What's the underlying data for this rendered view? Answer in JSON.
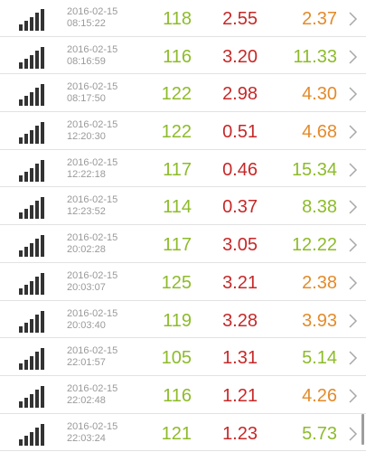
{
  "colors": {
    "green": "#8dbb2a",
    "red": "#c62828",
    "orange": "#e48a2a",
    "signal": "#333333",
    "timestamp": "#9a9a9a"
  },
  "icons": {
    "signal": "signal-strength-icon",
    "chevron": "chevron-right-icon"
  },
  "rows": [
    {
      "date": "2016-02-15",
      "time": "08:15:22",
      "v1": "118",
      "v2": "2.55",
      "v3": "2.37",
      "c1": "green",
      "c2": "red",
      "c3": "orange"
    },
    {
      "date": "2016-02-15",
      "time": "08:16:59",
      "v1": "116",
      "v2": "3.20",
      "v3": "11.33",
      "c1": "green",
      "c2": "red",
      "c3": "green"
    },
    {
      "date": "2016-02-15",
      "time": "08:17:50",
      "v1": "122",
      "v2": "2.98",
      "v3": "4.30",
      "c1": "green",
      "c2": "red",
      "c3": "orange"
    },
    {
      "date": "2016-02-15",
      "time": "12:20:30",
      "v1": "122",
      "v2": "0.51",
      "v3": "4.68",
      "c1": "green",
      "c2": "red",
      "c3": "orange"
    },
    {
      "date": "2016-02-15",
      "time": "12:22:18",
      "v1": "117",
      "v2": "0.46",
      "v3": "15.34",
      "c1": "green",
      "c2": "red",
      "c3": "green"
    },
    {
      "date": "2016-02-15",
      "time": "12:23:52",
      "v1": "114",
      "v2": "0.37",
      "v3": "8.38",
      "c1": "green",
      "c2": "red",
      "c3": "green"
    },
    {
      "date": "2016-02-15",
      "time": "20:02:28",
      "v1": "117",
      "v2": "3.05",
      "v3": "12.22",
      "c1": "green",
      "c2": "red",
      "c3": "green"
    },
    {
      "date": "2016-02-15",
      "time": "20:03:07",
      "v1": "125",
      "v2": "3.21",
      "v3": "2.38",
      "c1": "green",
      "c2": "red",
      "c3": "orange"
    },
    {
      "date": "2016-02-15",
      "time": "20:03:40",
      "v1": "119",
      "v2": "3.28",
      "v3": "3.93",
      "c1": "green",
      "c2": "red",
      "c3": "orange"
    },
    {
      "date": "2016-02-15",
      "time": "22:01:57",
      "v1": "105",
      "v2": "1.31",
      "v3": "5.14",
      "c1": "green",
      "c2": "red",
      "c3": "green"
    },
    {
      "date": "2016-02-15",
      "time": "22:02:48",
      "v1": "116",
      "v2": "1.21",
      "v3": "4.26",
      "c1": "green",
      "c2": "red",
      "c3": "orange"
    },
    {
      "date": "2016-02-15",
      "time": "22:03:24",
      "v1": "121",
      "v2": "1.23",
      "v3": "5.73",
      "c1": "green",
      "c2": "red",
      "c3": "green"
    }
  ]
}
